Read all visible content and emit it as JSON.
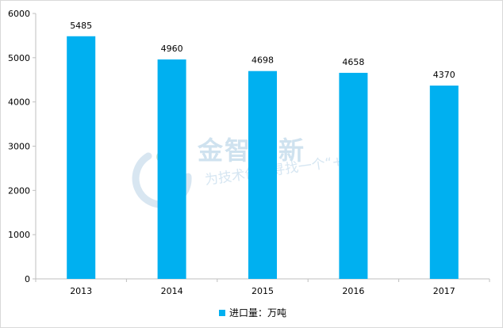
{
  "chart_data": {
    "type": "bar",
    "categories": [
      "2013",
      "2014",
      "2015",
      "2016",
      "2017"
    ],
    "series": [
      {
        "name": "进口量：万吨",
        "values": [
          5485,
          4960,
          4698,
          4658,
          4370
        ],
        "color": "#00b0f0"
      }
    ],
    "ylim": [
      0,
      6000
    ],
    "yticks": [
      "0",
      "1000",
      "2000",
      "3000",
      "4000",
      "5000",
      "6000"
    ],
    "grid": false,
    "legend_position": "bottom"
  },
  "watermark": {
    "logo_icon": "jinzhi-logo-icon",
    "title": "金智创新",
    "subtitle": "为技术创新寻找一个“+”"
  }
}
